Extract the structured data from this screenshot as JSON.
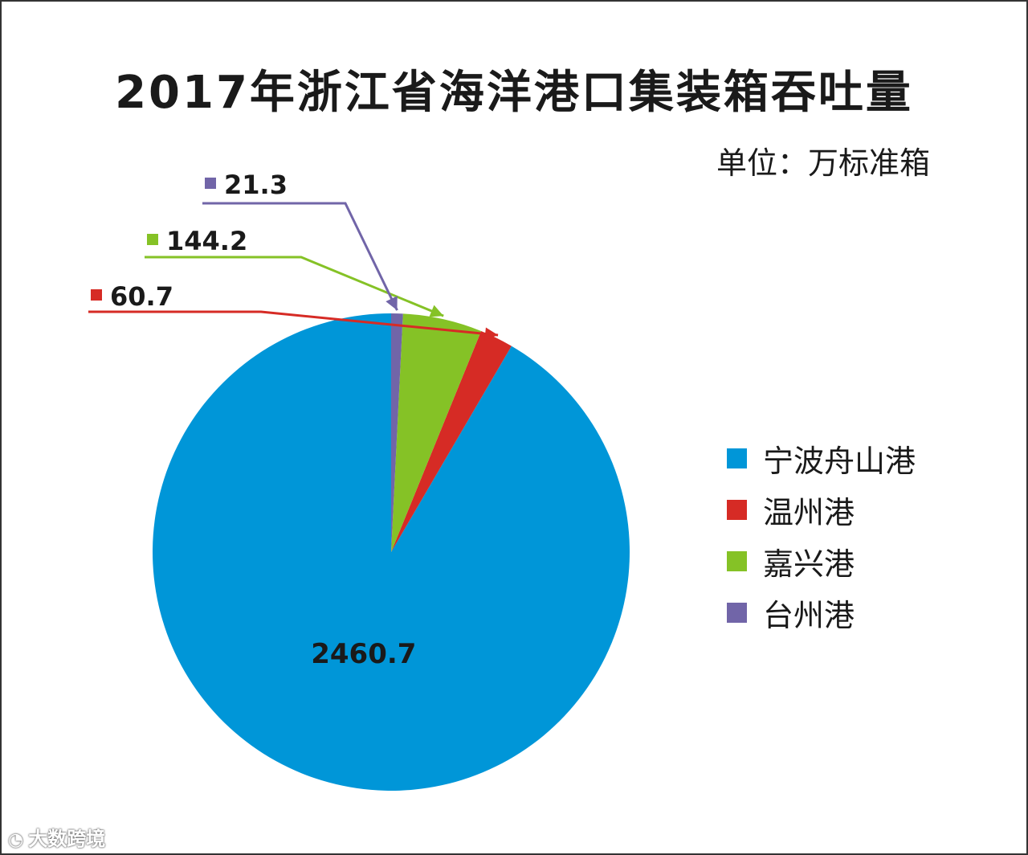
{
  "chart_data": {
    "type": "pie",
    "title": "2017年浙江省海洋港口集装箱吞吐量",
    "unit": "单位：万标准箱",
    "series": [
      {
        "name": "宁波舟山港",
        "value": 2460.7,
        "color": "#0096d8",
        "label": "2460.7"
      },
      {
        "name": "温州港",
        "value": 60.7,
        "color": "#d62b25",
        "label": "60.7"
      },
      {
        "name": "嘉兴港",
        "value": 144.2,
        "color": "#85c226",
        "label": "144.2"
      },
      {
        "name": "台州港",
        "value": 21.3,
        "color": "#7165a8",
        "label": "21.3"
      }
    ],
    "legend_position": "right"
  },
  "watermark": {
    "text": "大数跨境",
    "icon": "weibo-icon"
  }
}
